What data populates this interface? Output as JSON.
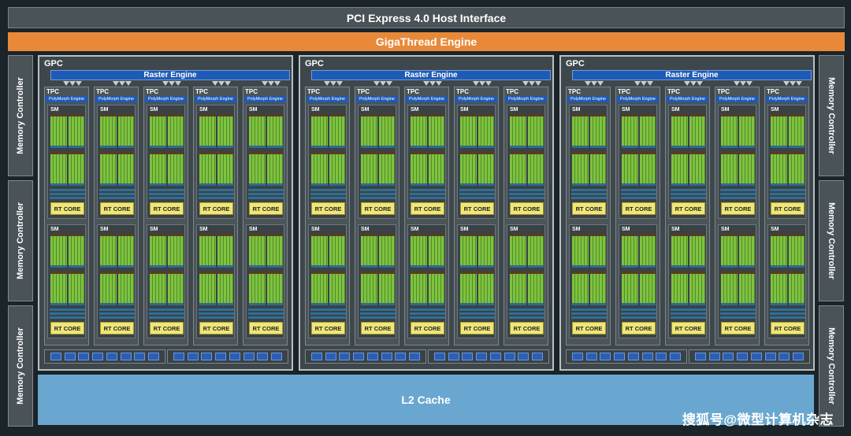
{
  "header": {
    "pcie_label": "PCI Express 4.0 Host Interface",
    "gigathread_label": "GigaThread Engine"
  },
  "memory_controller_label": "Memory Controller",
  "gpc": {
    "label": "GPC",
    "raster_engine_label": "Raster Engine",
    "tpc_label": "TPC",
    "polymorph_label": "PolyMorph Engine",
    "sm_label": "SM",
    "rt_core_label": "RT CORE"
  },
  "l2_cache_label": "L2 Cache",
  "watermark": "搜狐号@微型计算机杂志",
  "colors": {
    "giga_thread": "#e8893a",
    "raster_engine": "#1f5bb5",
    "cuda_core": "#7fc141",
    "rt_core": "#efe67a",
    "l2_cache": "#6aa7d0"
  }
}
